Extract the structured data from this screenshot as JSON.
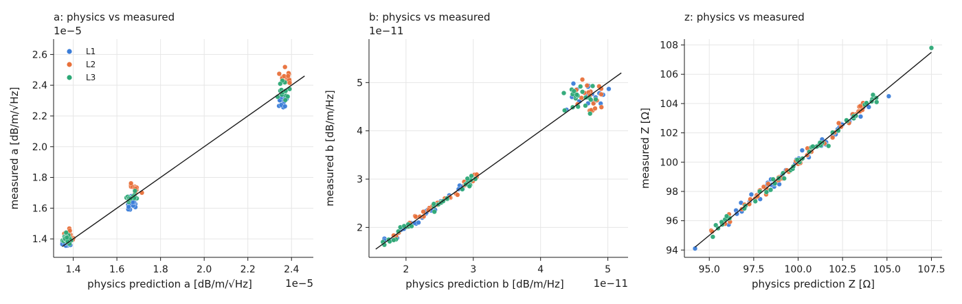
{
  "chart_data": [
    {
      "type": "scatter",
      "title": "a: physics vs measured",
      "xlabel": "physics prediction a  [dB/m/√Hz]",
      "ylabel": "measured a  [dB/m/√Hz]",
      "x_offset": "1e−5",
      "y_offset": "1e−5",
      "xlim": [
        1.31,
        2.5
      ],
      "ylim": [
        1.28,
        2.7
      ],
      "xticks": [
        1.4,
        1.6,
        1.8,
        2.0,
        2.2,
        2.4
      ],
      "yticks": [
        1.4,
        1.6,
        1.8,
        2.0,
        2.2,
        2.4,
        2.6
      ],
      "tick_decimals": 1,
      "grid": true,
      "legend": "top-left",
      "fit_line": [
        [
          1.35,
          1.35
        ],
        [
          2.46,
          2.46
        ]
      ],
      "series": [
        {
          "name": "L1",
          "color": "#3b7dd8",
          "clusters": [
            {
              "cx": 1.37,
              "cy": 1.37,
              "n": 22,
              "sx": 0.02,
              "sy": 0.03
            },
            {
              "cx": 1.67,
              "cy": 1.63,
              "n": 16,
              "sx": 0.025,
              "sy": 0.04
            },
            {
              "cx": 2.35,
              "cy": 2.3,
              "n": 14,
              "sx": 0.04,
              "sy": 0.06
            }
          ]
        },
        {
          "name": "L2",
          "color": "#e8703a",
          "clusters": [
            {
              "cx": 1.38,
              "cy": 1.43,
              "n": 22,
              "sx": 0.02,
              "sy": 0.03
            },
            {
              "cx": 1.68,
              "cy": 1.72,
              "n": 16,
              "sx": 0.025,
              "sy": 0.04
            },
            {
              "cx": 2.38,
              "cy": 2.45,
              "n": 14,
              "sx": 0.04,
              "sy": 0.07
            }
          ]
        },
        {
          "name": "L3",
          "color": "#2ca876",
          "clusters": [
            {
              "cx": 1.37,
              "cy": 1.4,
              "n": 22,
              "sx": 0.02,
              "sy": 0.03
            },
            {
              "cx": 1.67,
              "cy": 1.67,
              "n": 16,
              "sx": 0.025,
              "sy": 0.04
            },
            {
              "cx": 2.36,
              "cy": 2.36,
              "n": 14,
              "sx": 0.04,
              "sy": 0.06
            }
          ]
        }
      ]
    },
    {
      "type": "scatter",
      "title": "b: physics vs measured",
      "xlabel": "physics prediction b  [dB/m/Hz]",
      "ylabel": "measured b  [dB/m/Hz]",
      "x_offset": "1e−11",
      "y_offset": "1e−11",
      "xlim": [
        1.45,
        5.3
      ],
      "ylim": [
        1.38,
        5.9
      ],
      "xticks": [
        2,
        3,
        4,
        5
      ],
      "yticks": [
        2,
        3,
        4,
        5
      ],
      "tick_decimals": 0,
      "grid": true,
      "fit_line": [
        [
          1.55,
          1.55
        ],
        [
          5.2,
          5.2
        ]
      ],
      "series": [
        {
          "name": "L1",
          "color": "#3b7dd8",
          "clusters": [
            {
              "line": [
                1.6,
                3.0
              ],
              "n": 30,
              "scatter": 0.09
            },
            {
              "cx": 4.65,
              "cy": 4.7,
              "n": 20,
              "sx": 0.3,
              "sy": 0.35
            }
          ]
        },
        {
          "name": "L2",
          "color": "#e8703a",
          "clusters": [
            {
              "line": [
                1.6,
                3.1
              ],
              "n": 30,
              "scatter": 0.09
            },
            {
              "cx": 4.7,
              "cy": 4.75,
              "n": 20,
              "sx": 0.3,
              "sy": 0.35
            }
          ]
        },
        {
          "name": "L3",
          "color": "#2ca876",
          "clusters": [
            {
              "line": [
                1.6,
                3.1
              ],
              "n": 30,
              "scatter": 0.09
            },
            {
              "cx": 4.6,
              "cy": 4.65,
              "n": 20,
              "sx": 0.3,
              "sy": 0.35
            }
          ]
        }
      ]
    },
    {
      "type": "scatter",
      "title": "z: physics vs measured",
      "xlabel": "physics prediction Z  [Ω]",
      "ylabel": "measured Z  [Ω]",
      "xlim": [
        93.6,
        108.1
      ],
      "ylim": [
        93.5,
        108.4
      ],
      "xticks": [
        95.0,
        97.5,
        100.0,
        102.5,
        105.0,
        107.5
      ],
      "yticks": [
        94,
        96,
        98,
        100,
        102,
        104,
        106,
        108
      ],
      "tick_decimals_x": 1,
      "tick_decimals_y": 0,
      "grid": true,
      "fit_line": [
        [
          94.2,
          94.2
        ],
        [
          107.5,
          107.5
        ]
      ],
      "series": [
        {
          "name": "L1",
          "color": "#3b7dd8",
          "clusters": [
            {
              "line": [
                96.0,
                104.0
              ],
              "n": 50,
              "scatter": 0.35
            },
            {
              "points": [
                [
                  94.2,
                  94.1
                ],
                [
                  105.1,
                  104.5
                ]
              ]
            }
          ]
        },
        {
          "name": "L2",
          "color": "#e8703a",
          "clusters": [
            {
              "line": [
                95.0,
                104.8
              ],
              "n": 50,
              "scatter": 0.35
            }
          ]
        },
        {
          "name": "L3",
          "color": "#2ca876",
          "clusters": [
            {
              "line": [
                95.5,
                104.5
              ],
              "n": 50,
              "scatter": 0.35
            },
            {
              "points": [
                [
                  107.5,
                  107.8
                ],
                [
                  95.2,
                  94.9
                ]
              ]
            }
          ]
        }
      ]
    }
  ]
}
